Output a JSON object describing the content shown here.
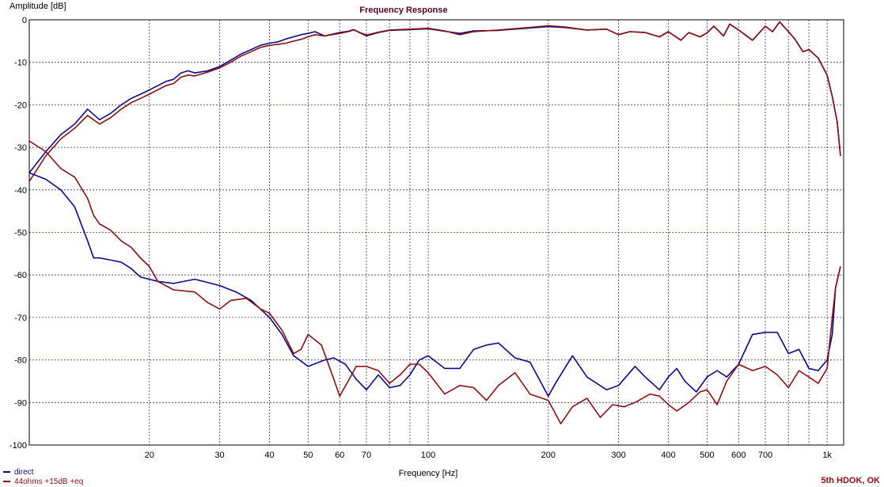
{
  "chart_data": {
    "type": "line",
    "title": "Frequency Response",
    "xlabel": "Frequency [Hz]",
    "ylabel": "Amplitude [dB]",
    "xscale": "log",
    "xlim": [
      10,
      1100
    ],
    "ylim": [
      -100,
      0
    ],
    "grid": true,
    "legend_position": "bottom-left",
    "x_ticks": [
      {
        "v": 20,
        "label": "20"
      },
      {
        "v": 30,
        "label": "30"
      },
      {
        "v": 40,
        "label": "40"
      },
      {
        "v": 50,
        "label": "50"
      },
      {
        "v": 60,
        "label": "60"
      },
      {
        "v": 70,
        "label": "70"
      },
      {
        "v": 100,
        "label": "100"
      },
      {
        "v": 200,
        "label": "200"
      },
      {
        "v": 300,
        "label": "300"
      },
      {
        "v": 400,
        "label": "400"
      },
      {
        "v": 500,
        "label": "500"
      },
      {
        "v": 600,
        "label": "600"
      },
      {
        "v": 700,
        "label": "700"
      },
      {
        "v": 1000,
        "label": "1k"
      }
    ],
    "x_minor_grid": [
      80,
      90,
      800,
      900
    ],
    "y_ticks": [
      0,
      -10,
      -20,
      -30,
      -40,
      -50,
      -60,
      -70,
      -80,
      -90,
      -100
    ],
    "y_tick_labels": [
      "0",
      "-10",
      "-20",
      "-30",
      "-40",
      "-50",
      "-60",
      "-70",
      "-80",
      "-90",
      "-100"
    ],
    "annotation": "5th HDOK, OK",
    "series": [
      {
        "name": "direct",
        "color": "#0a0a8c",
        "role": "fundamental",
        "x": [
          10,
          11,
          12,
          13,
          14,
          15,
          16,
          17,
          18,
          19,
          20,
          22,
          23,
          24,
          25,
          26,
          28,
          30,
          32,
          34,
          36,
          38,
          40,
          42,
          44,
          46,
          48,
          50,
          52,
          55,
          60,
          63,
          65,
          70,
          75,
          80,
          90,
          100,
          110,
          120,
          130,
          150,
          170,
          200,
          220,
          250,
          280,
          300,
          320,
          350,
          380,
          400,
          430,
          450,
          480,
          500,
          520,
          550,
          570,
          600,
          650,
          700,
          730,
          760,
          800,
          830,
          870,
          900,
          950,
          1000,
          1030,
          1060,
          1080
        ],
        "y": [
          -36,
          -31,
          -27,
          -24.5,
          -21,
          -23.5,
          -22,
          -20,
          -18.5,
          -17.5,
          -16.5,
          -14.5,
          -14,
          -12.5,
          -12,
          -12.5,
          -12,
          -11,
          -9.5,
          -8,
          -7,
          -6,
          -5.5,
          -5.2,
          -4.5,
          -4,
          -3.5,
          -3.2,
          -2.8,
          -3.8,
          -3,
          -2.7,
          -2.3,
          -3.8,
          -3,
          -2.5,
          -2.3,
          -2.1,
          -2.7,
          -3.2,
          -2.6,
          -2.5,
          -2.1,
          -1.6,
          -1.8,
          -2.4,
          -2.2,
          -3.5,
          -2.8,
          -3,
          -4,
          -2.8,
          -4.8,
          -3,
          -4,
          -3.1,
          -1.5,
          -3.8,
          -1,
          -2.4,
          -4.8,
          -1.5,
          -2.8,
          -0.5,
          -2.8,
          -4.5,
          -7.5,
          -7,
          -9,
          -13,
          -18,
          -24,
          -32
        ]
      },
      {
        "name": "44ohms +15dB +eq",
        "color": "#8b1010",
        "role": "fundamental",
        "x": [
          10,
          11,
          12,
          13,
          14,
          15,
          16,
          17,
          18,
          19,
          20,
          22,
          23,
          24,
          25,
          26,
          28,
          30,
          32,
          34,
          36,
          38,
          40,
          42,
          44,
          46,
          48,
          50,
          52,
          55,
          60,
          63,
          65,
          70,
          75,
          80,
          90,
          100,
          110,
          120,
          130,
          150,
          170,
          200,
          220,
          250,
          280,
          300,
          320,
          350,
          380,
          400,
          430,
          450,
          480,
          500,
          520,
          550,
          570,
          600,
          650,
          700,
          730,
          760,
          800,
          830,
          870,
          900,
          950,
          1000,
          1030,
          1060,
          1080
        ],
        "y": [
          -38,
          -32,
          -28,
          -25.5,
          -22.5,
          -24.5,
          -23,
          -21,
          -19.5,
          -18.5,
          -17.5,
          -15.5,
          -15,
          -13.5,
          -13,
          -13.2,
          -12.3,
          -11.3,
          -10,
          -8.5,
          -7.5,
          -6.5,
          -6,
          -5.8,
          -5.5,
          -5,
          -4.6,
          -4,
          -3.5,
          -3.8,
          -3.2,
          -2.8,
          -2.4,
          -3.6,
          -2.9,
          -2.4,
          -2.2,
          -2,
          -2.6,
          -3.5,
          -2.8,
          -2.4,
          -2,
          -1.4,
          -1.7,
          -2.4,
          -2.2,
          -3.5,
          -2.8,
          -3,
          -4,
          -2.8,
          -4.8,
          -3,
          -4,
          -3.1,
          -1.5,
          -3.8,
          -1,
          -2.4,
          -4.8,
          -1.5,
          -2.8,
          -0.5,
          -2.8,
          -4.5,
          -7.5,
          -7,
          -9,
          -13,
          -18,
          -24,
          -32
        ]
      },
      {
        "name": "direct",
        "color": "#0a0a8c",
        "role": "harmonic",
        "x": [
          10,
          11,
          12,
          13,
          14,
          14.5,
          15,
          16,
          17,
          18,
          19,
          20,
          21,
          23,
          26,
          30,
          33,
          36,
          40,
          43,
          46,
          50,
          55,
          58,
          62,
          66,
          70,
          75,
          80,
          85,
          90,
          95,
          100,
          110,
          120,
          130,
          140,
          150,
          165,
          180,
          200,
          210,
          230,
          250,
          280,
          300,
          330,
          350,
          380,
          400,
          420,
          440,
          470,
          500,
          530,
          560,
          600,
          650,
          700,
          750,
          800,
          850,
          900,
          950,
          1000,
          1030,
          1050,
          1080
        ],
        "y": [
          -36,
          -37.5,
          -40,
          -44,
          -52,
          -56,
          -56,
          -56.5,
          -57,
          -58.5,
          -60.5,
          -61,
          -61.5,
          -62,
          -61,
          -62.5,
          -64,
          -66,
          -70,
          -74,
          -79,
          -81.5,
          -80,
          -79.5,
          -81,
          -84.5,
          -87,
          -83.5,
          -86.5,
          -86,
          -83.5,
          -80,
          -79,
          -82,
          -82,
          -77.5,
          -76.5,
          -76,
          -79.5,
          -80.5,
          -88.5,
          -85,
          -79,
          -84,
          -87,
          -86,
          -81.5,
          -84,
          -87,
          -84,
          -82,
          -85,
          -87.5,
          -84,
          -82.5,
          -84,
          -81,
          -74,
          -73.5,
          -73.5,
          -78.5,
          -77.5,
          -82,
          -82.5,
          -80,
          -74,
          -63,
          -58
        ]
      },
      {
        "name": "44ohms +15dB +eq",
        "color": "#8b1010",
        "role": "harmonic",
        "x": [
          10,
          11,
          12,
          13,
          14,
          14.5,
          15,
          16,
          17,
          18,
          19,
          20,
          21,
          23,
          26,
          28,
          30,
          32,
          35,
          38,
          40,
          43,
          46,
          48,
          50,
          54,
          58,
          60,
          63,
          66,
          70,
          75,
          80,
          85,
          90,
          95,
          100,
          110,
          120,
          130,
          140,
          150,
          165,
          180,
          200,
          215,
          230,
          250,
          270,
          290,
          310,
          330,
          360,
          380,
          400,
          420,
          450,
          480,
          500,
          530,
          560,
          600,
          650,
          700,
          750,
          800,
          850,
          900,
          950,
          1000,
          1030,
          1050,
          1080
        ],
        "y": [
          -28.5,
          -31,
          -35,
          -37,
          -42,
          -46,
          -48,
          -49.5,
          -52,
          -53.5,
          -56,
          -58,
          -61.5,
          -63.5,
          -64,
          -66.5,
          -68,
          -66,
          -65.5,
          -68,
          -69,
          -73,
          -78.5,
          -77.5,
          -74,
          -76.5,
          -84.5,
          -88.5,
          -85,
          -81.5,
          -81.5,
          -82.5,
          -85.5,
          -83.5,
          -81,
          -81,
          -83,
          -88,
          -86,
          -86.5,
          -89.5,
          -86,
          -83,
          -88,
          -89.5,
          -95,
          -91,
          -89,
          -93.5,
          -90.5,
          -91,
          -90,
          -88,
          -88.5,
          -90.5,
          -92,
          -90,
          -87.5,
          -87,
          -90.5,
          -85,
          -81,
          -82.5,
          -81.5,
          -83.5,
          -86.5,
          -82.5,
          -84,
          -85.5,
          -82,
          -70,
          -63,
          -58
        ]
      }
    ]
  }
}
